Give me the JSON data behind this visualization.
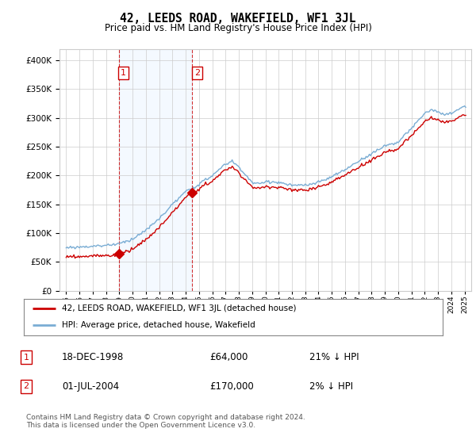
{
  "title": "42, LEEDS ROAD, WAKEFIELD, WF1 3JL",
  "subtitle": "Price paid vs. HM Land Registry's House Price Index (HPI)",
  "legend_line1": "42, LEEDS ROAD, WAKEFIELD, WF1 3JL (detached house)",
  "legend_line2": "HPI: Average price, detached house, Wakefield",
  "sale1_date": "18-DEC-1998",
  "sale1_price": "£64,000",
  "sale1_hpi_text": "21% ↓ HPI",
  "sale1_x": 1998.96,
  "sale1_y": 64000,
  "sale2_date": "01-JUL-2004",
  "sale2_price": "£170,000",
  "sale2_hpi_text": "2% ↓ HPI",
  "sale2_x": 2004.5,
  "sale2_y": 170000,
  "ylabel_vals": [
    0,
    50000,
    100000,
    150000,
    200000,
    250000,
    300000,
    350000,
    400000
  ],
  "ylabel_strs": [
    "£0",
    "£50K",
    "£100K",
    "£150K",
    "£200K",
    "£250K",
    "£300K",
    "£350K",
    "£400K"
  ],
  "ylim": [
    0,
    420000
  ],
  "xlim_start": 1994.5,
  "xlim_end": 2025.5,
  "footer": "Contains HM Land Registry data © Crown copyright and database right 2024.\nThis data is licensed under the Open Government Licence v3.0.",
  "hpi_color": "#7aadd4",
  "price_color": "#cc0000",
  "shade_color": "#ddeeff",
  "grid_color": "#cccccc",
  "background_color": "#ffffff"
}
